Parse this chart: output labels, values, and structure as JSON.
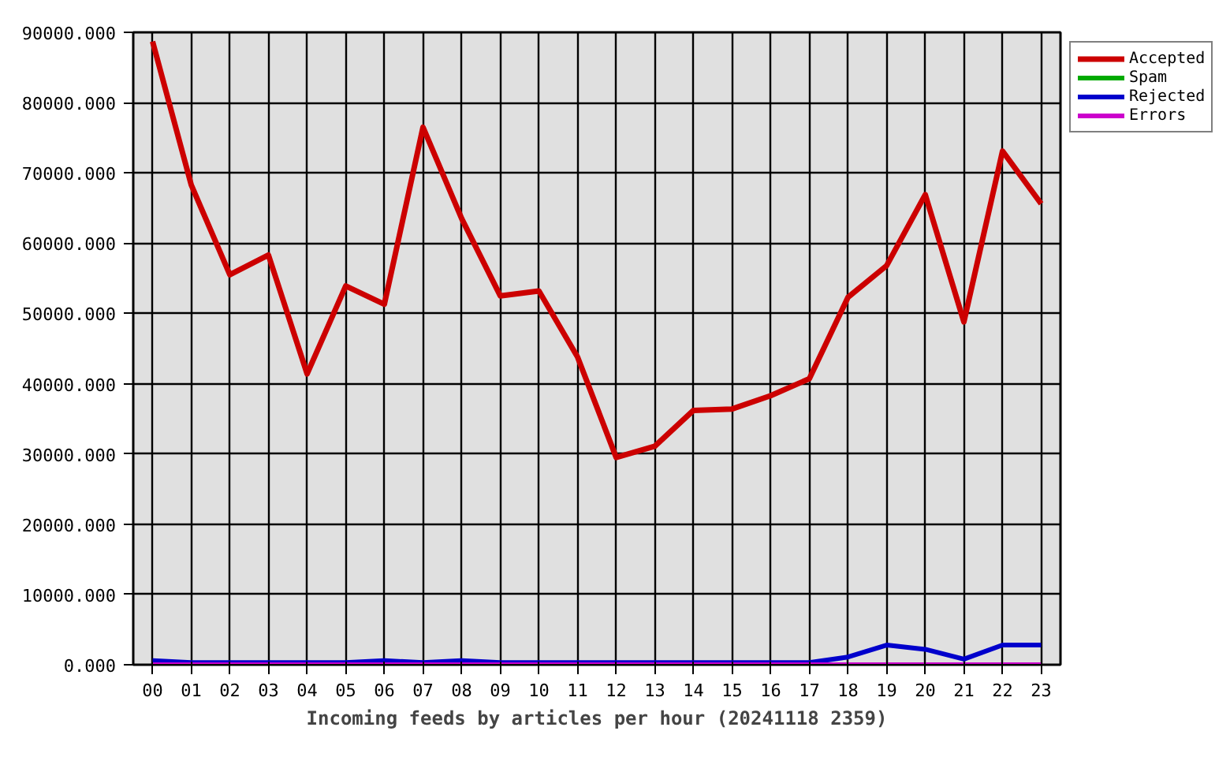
{
  "chart_data": {
    "type": "line",
    "xlabel": "Incoming feeds by articles per hour (20241118 2359)",
    "categories": [
      "00",
      "01",
      "02",
      "03",
      "04",
      "05",
      "06",
      "07",
      "08",
      "09",
      "10",
      "11",
      "12",
      "13",
      "14",
      "15",
      "16",
      "17",
      "18",
      "19",
      "20",
      "21",
      "22",
      "23"
    ],
    "series": [
      {
        "name": "Accepted",
        "color": "#cc0000",
        "values": [
          88700,
          68300,
          55500,
          58300,
          41400,
          53900,
          51300,
          76500,
          63500,
          52500,
          53200,
          43800,
          29500,
          31100,
          36200,
          36400,
          38300,
          40700,
          52300,
          56800,
          66900,
          48800,
          73100,
          65600
        ]
      },
      {
        "name": "Spam",
        "color": "#00aa00",
        "values": [
          null,
          null,
          null,
          null,
          null,
          null,
          null,
          null,
          null,
          null,
          null,
          null,
          null,
          null,
          null,
          null,
          null,
          null,
          null,
          null,
          null,
          null,
          null,
          null
        ]
      },
      {
        "name": "Rejected",
        "color": "#0000cc",
        "values": [
          600,
          300,
          300,
          300,
          300,
          300,
          600,
          300,
          600,
          300,
          300,
          300,
          300,
          300,
          300,
          300,
          300,
          300,
          1100,
          2800,
          2200,
          800,
          2800,
          2800
        ]
      },
      {
        "name": "Errors",
        "color": "#cc00cc",
        "values": [
          0,
          0,
          0,
          0,
          0,
          0,
          0,
          0,
          0,
          0,
          0,
          0,
          0,
          0,
          0,
          0,
          0,
          0,
          0,
          0,
          0,
          0,
          0,
          0
        ]
      }
    ],
    "ylim": [
      0,
      90000
    ],
    "yticks": [
      {
        "value": 0,
        "label": "0.000"
      },
      {
        "value": 10000,
        "label": "10000.000"
      },
      {
        "value": 20000,
        "label": "20000.000"
      },
      {
        "value": 30000,
        "label": "30000.000"
      },
      {
        "value": 40000,
        "label": "40000.000"
      },
      {
        "value": 50000,
        "label": "50000.000"
      },
      {
        "value": 60000,
        "label": "60000.000"
      },
      {
        "value": 70000,
        "label": "70000.000"
      },
      {
        "value": 80000,
        "label": "80000.000"
      },
      {
        "value": 90000,
        "label": "90000.000"
      }
    ],
    "grid": true,
    "legend": "top right",
    "line_style": "solid"
  }
}
